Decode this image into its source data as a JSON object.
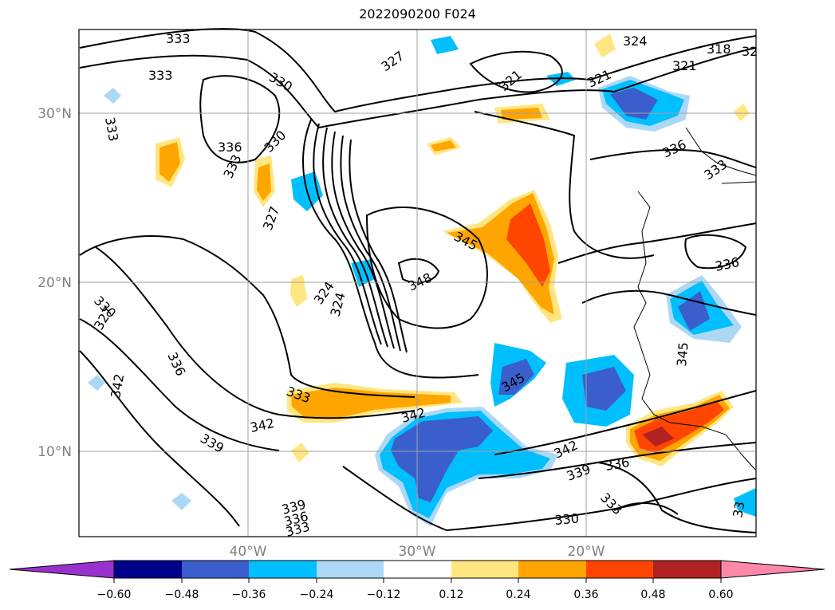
{
  "map": {
    "title": "2022090200 F024",
    "lat_labels": [
      "30°N",
      "20°N",
      "10°N"
    ],
    "lon_labels": [
      "40°W",
      "30°W",
      "20°W"
    ],
    "lat_lines": [
      30,
      20,
      10
    ],
    "lon_lines": [
      -40,
      -30,
      -20
    ],
    "contour_labels": [
      "333",
      "333",
      "330",
      "327",
      "324",
      "321",
      "321",
      "318",
      "32",
      "333",
      "336",
      "330",
      "333",
      "327",
      "336",
      "333",
      "336",
      "345",
      "348",
      "324",
      "324",
      "330",
      "327",
      "336",
      "342",
      "333",
      "342",
      "342",
      "339",
      "345",
      "342",
      "339",
      "336",
      "333",
      "330",
      "339",
      "336",
      "333",
      "345",
      "33"
    ]
  },
  "colorbar": {
    "tick_labels": [
      "−0.60",
      "−0.48",
      "−0.36",
      "−0.24",
      "−0.12",
      "0.12",
      "0.24",
      "0.36",
      "0.48",
      "0.60"
    ],
    "colors": [
      "#9932cc",
      "#00008b",
      "#3a5fcd",
      "#00bfff",
      "#add8f5",
      "#ffffff",
      "#ffe680",
      "#ffa500",
      "#ff4500",
      "#b22222",
      "#ff88aa"
    ]
  }
}
